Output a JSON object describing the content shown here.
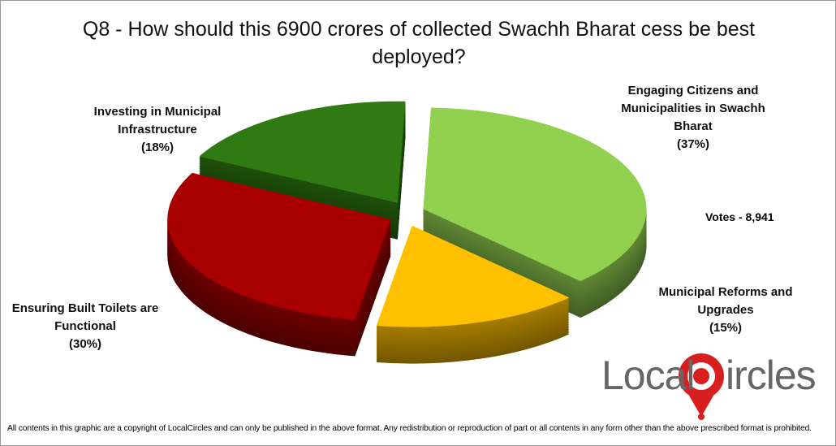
{
  "chart_data": {
    "type": "pie",
    "title": "Q8 - How should this 6900 crores of collected Swachh Bharat cess be best deployed?",
    "categories": [
      "Engaging Citizens and Municipalities in Swachh Bharat",
      "Municipal Reforms and Upgrades",
      "Ensuring Built Toilets are Functional",
      "Investing in Municipal Infrastructure"
    ],
    "values": [
      37,
      15,
      30,
      18
    ],
    "value_labels": [
      "(37%)",
      "(15%)",
      "(30%)",
      "(18%)"
    ],
    "colors": [
      "#92d050",
      "#ffc000",
      "#a80000",
      "#2f7a12"
    ],
    "annotation": "Votes - 8,941"
  },
  "logo": {
    "left": "Local",
    "right": "ircles"
  },
  "footer": "All contents in this graphic are a copyright of LocalCircles and can only be published in the above format. Any redistribution or reproduction of part or all contents in any form other than the above prescribed format is prohibited."
}
